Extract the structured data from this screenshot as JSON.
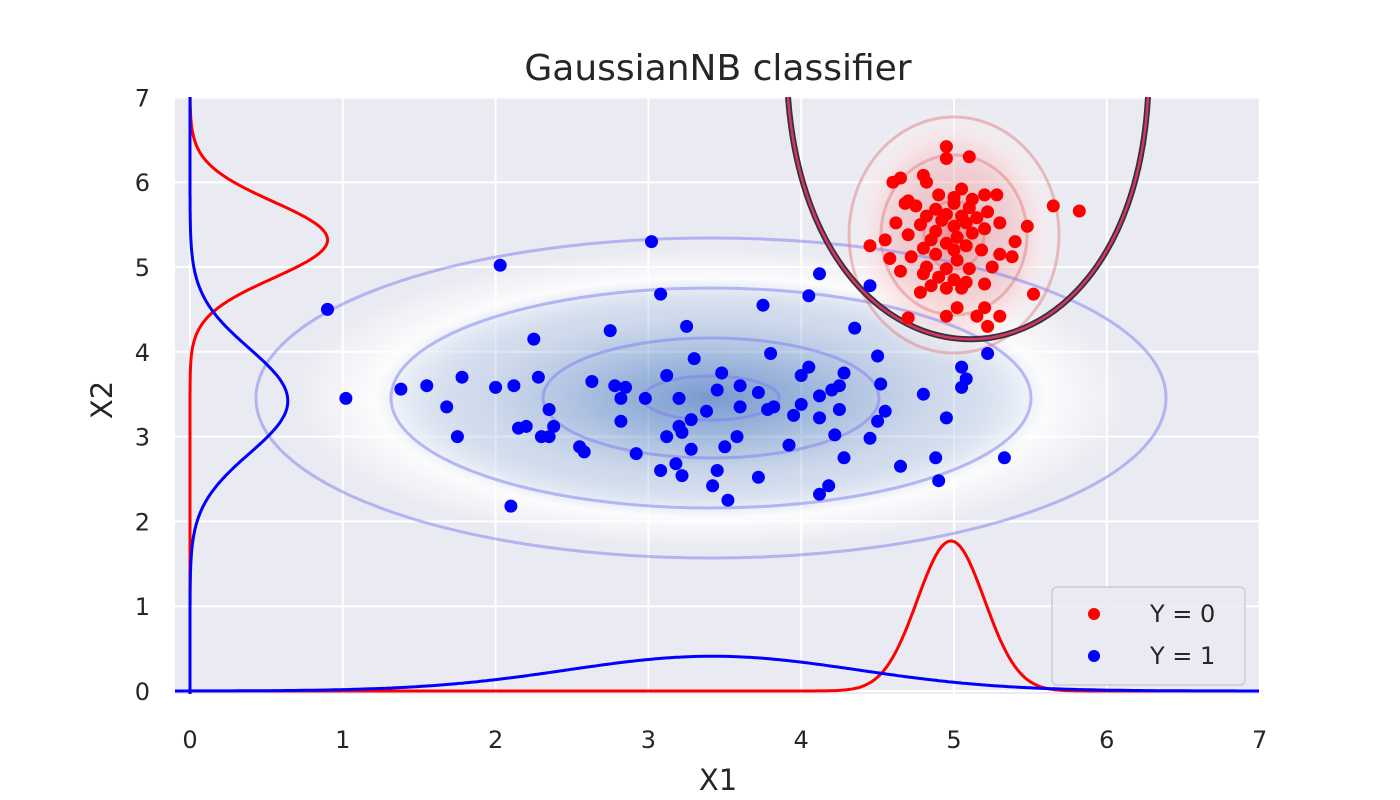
{
  "chart_data": {
    "type": "scatter",
    "title": "GaussianNB classifier",
    "xlabel": "X1",
    "ylabel": "X2",
    "xlim": [
      -0.1,
      7
    ],
    "ylim": [
      -0.05,
      7
    ],
    "xticks": [
      "0",
      "1",
      "2",
      "3",
      "4",
      "5",
      "6",
      "7"
    ],
    "yticks": [
      "0",
      "1",
      "2",
      "3",
      "4",
      "5",
      "6",
      "7"
    ],
    "grid": true,
    "legend_position": "lower-right",
    "series": [
      {
        "name": "Y = 0",
        "color": "#ff0000",
        "points": [
          [
            4.95,
            6.42
          ],
          [
            4.95,
            6.28
          ],
          [
            5.1,
            6.3
          ],
          [
            4.8,
            6.08
          ],
          [
            4.65,
            6.05
          ],
          [
            4.6,
            6.0
          ],
          [
            4.82,
            6.0
          ],
          [
            5.05,
            5.92
          ],
          [
            5.2,
            5.85
          ],
          [
            4.9,
            5.85
          ],
          [
            5.0,
            5.82
          ],
          [
            4.7,
            5.78
          ],
          [
            5.12,
            5.8
          ],
          [
            4.75,
            5.72
          ],
          [
            5.0,
            5.75
          ],
          [
            5.1,
            5.7
          ],
          [
            4.88,
            5.68
          ],
          [
            5.22,
            5.65
          ],
          [
            4.95,
            5.62
          ],
          [
            5.05,
            5.6
          ],
          [
            4.82,
            5.6
          ],
          [
            5.15,
            5.58
          ],
          [
            4.92,
            5.55
          ],
          [
            5.08,
            5.52
          ],
          [
            5.3,
            5.52
          ],
          [
            4.78,
            5.5
          ],
          [
            5.0,
            5.48
          ],
          [
            5.2,
            5.45
          ],
          [
            4.88,
            5.42
          ],
          [
            5.12,
            5.4
          ],
          [
            4.7,
            5.38
          ],
          [
            5.02,
            5.35
          ],
          [
            4.85,
            5.32
          ],
          [
            4.55,
            5.32
          ],
          [
            4.95,
            5.28
          ],
          [
            5.08,
            5.25
          ],
          [
            4.8,
            5.22
          ],
          [
            4.45,
            5.25
          ],
          [
            5.0,
            5.2
          ],
          [
            5.18,
            5.2
          ],
          [
            5.3,
            5.15
          ],
          [
            5.38,
            5.12
          ],
          [
            4.88,
            5.15
          ],
          [
            4.72,
            5.12
          ],
          [
            5.02,
            5.08
          ],
          [
            4.82,
            5.0
          ],
          [
            4.95,
            4.98
          ],
          [
            5.1,
            4.98
          ],
          [
            4.65,
            4.95
          ],
          [
            4.8,
            4.92
          ],
          [
            4.9,
            4.88
          ],
          [
            5.0,
            4.85
          ],
          [
            5.08,
            4.82
          ],
          [
            4.85,
            4.78
          ],
          [
            4.78,
            4.7
          ],
          [
            4.95,
            4.75
          ],
          [
            5.05,
            4.75
          ],
          [
            5.2,
            4.8
          ],
          [
            5.02,
            4.52
          ],
          [
            5.2,
            4.52
          ],
          [
            4.95,
            4.42
          ],
          [
            5.15,
            4.42
          ],
          [
            5.3,
            4.42
          ],
          [
            5.22,
            4.3
          ],
          [
            4.7,
            4.4
          ],
          [
            5.52,
            4.68
          ],
          [
            5.48,
            5.48
          ],
          [
            5.65,
            5.72
          ],
          [
            5.82,
            5.66
          ],
          [
            4.62,
            5.52
          ],
          [
            4.68,
            5.75
          ],
          [
            5.28,
            5.85
          ],
          [
            5.4,
            5.3
          ],
          [
            4.58,
            5.1
          ],
          [
            5.25,
            5.0
          ]
        ]
      },
      {
        "name": "Y = 1",
        "color": "#0000ff",
        "points": [
          [
            3.02,
            5.3
          ],
          [
            2.03,
            5.02
          ],
          [
            0.9,
            4.5
          ],
          [
            3.08,
            4.68
          ],
          [
            4.05,
            4.66
          ],
          [
            4.12,
            4.92
          ],
          [
            4.45,
            4.78
          ],
          [
            3.75,
            4.55
          ],
          [
            3.25,
            4.3
          ],
          [
            2.75,
            4.25
          ],
          [
            2.25,
            4.15
          ],
          [
            4.35,
            4.28
          ],
          [
            4.5,
            3.95
          ],
          [
            3.8,
            3.98
          ],
          [
            3.3,
            3.92
          ],
          [
            4.05,
            3.82
          ],
          [
            5.05,
            3.82
          ],
          [
            5.22,
            3.98
          ],
          [
            3.48,
            3.75
          ],
          [
            3.12,
            3.72
          ],
          [
            2.28,
            3.7
          ],
          [
            1.78,
            3.7
          ],
          [
            2.63,
            3.65
          ],
          [
            2.78,
            3.6
          ],
          [
            2.85,
            3.58
          ],
          [
            1.55,
            3.6
          ],
          [
            1.38,
            3.56
          ],
          [
            2.0,
            3.58
          ],
          [
            2.12,
            3.6
          ],
          [
            3.45,
            3.55
          ],
          [
            3.72,
            3.52
          ],
          [
            4.0,
            3.72
          ],
          [
            4.2,
            3.55
          ],
          [
            4.25,
            3.6
          ],
          [
            4.28,
            3.75
          ],
          [
            4.52,
            3.62
          ],
          [
            5.05,
            3.58
          ],
          [
            5.08,
            3.68
          ],
          [
            4.8,
            3.5
          ],
          [
            4.12,
            3.48
          ],
          [
            3.2,
            3.45
          ],
          [
            2.98,
            3.45
          ],
          [
            1.02,
            3.45
          ],
          [
            2.82,
            3.45
          ],
          [
            3.6,
            3.35
          ],
          [
            3.78,
            3.32
          ],
          [
            3.82,
            3.35
          ],
          [
            4.0,
            3.38
          ],
          [
            4.25,
            3.32
          ],
          [
            4.55,
            3.3
          ],
          [
            3.38,
            3.3
          ],
          [
            2.35,
            3.32
          ],
          [
            1.68,
            3.35
          ],
          [
            2.82,
            3.18
          ],
          [
            3.28,
            3.2
          ],
          [
            3.95,
            3.25
          ],
          [
            4.12,
            3.22
          ],
          [
            4.5,
            3.18
          ],
          [
            4.95,
            3.22
          ],
          [
            2.2,
            3.12
          ],
          [
            2.38,
            3.12
          ],
          [
            2.15,
            3.1
          ],
          [
            3.2,
            3.12
          ],
          [
            3.22,
            3.05
          ],
          [
            1.75,
            3.0
          ],
          [
            2.3,
            3.0
          ],
          [
            3.12,
            3.0
          ],
          [
            3.58,
            3.0
          ],
          [
            4.22,
            3.02
          ],
          [
            4.45,
            2.98
          ],
          [
            3.5,
            2.88
          ],
          [
            3.92,
            2.9
          ],
          [
            2.55,
            2.88
          ],
          [
            2.58,
            2.82
          ],
          [
            2.92,
            2.8
          ],
          [
            3.28,
            2.85
          ],
          [
            4.28,
            2.75
          ],
          [
            4.88,
            2.75
          ],
          [
            5.33,
            2.75
          ],
          [
            3.18,
            2.68
          ],
          [
            4.65,
            2.65
          ],
          [
            3.08,
            2.6
          ],
          [
            3.45,
            2.6
          ],
          [
            3.72,
            2.52
          ],
          [
            3.22,
            2.54
          ],
          [
            4.9,
            2.48
          ],
          [
            3.42,
            2.42
          ],
          [
            4.18,
            2.42
          ],
          [
            4.12,
            2.32
          ],
          [
            3.52,
            2.25
          ],
          [
            2.1,
            2.18
          ],
          [
            2.35,
            3.0
          ],
          [
            3.6,
            3.6
          ]
        ]
      }
    ]
  }
}
